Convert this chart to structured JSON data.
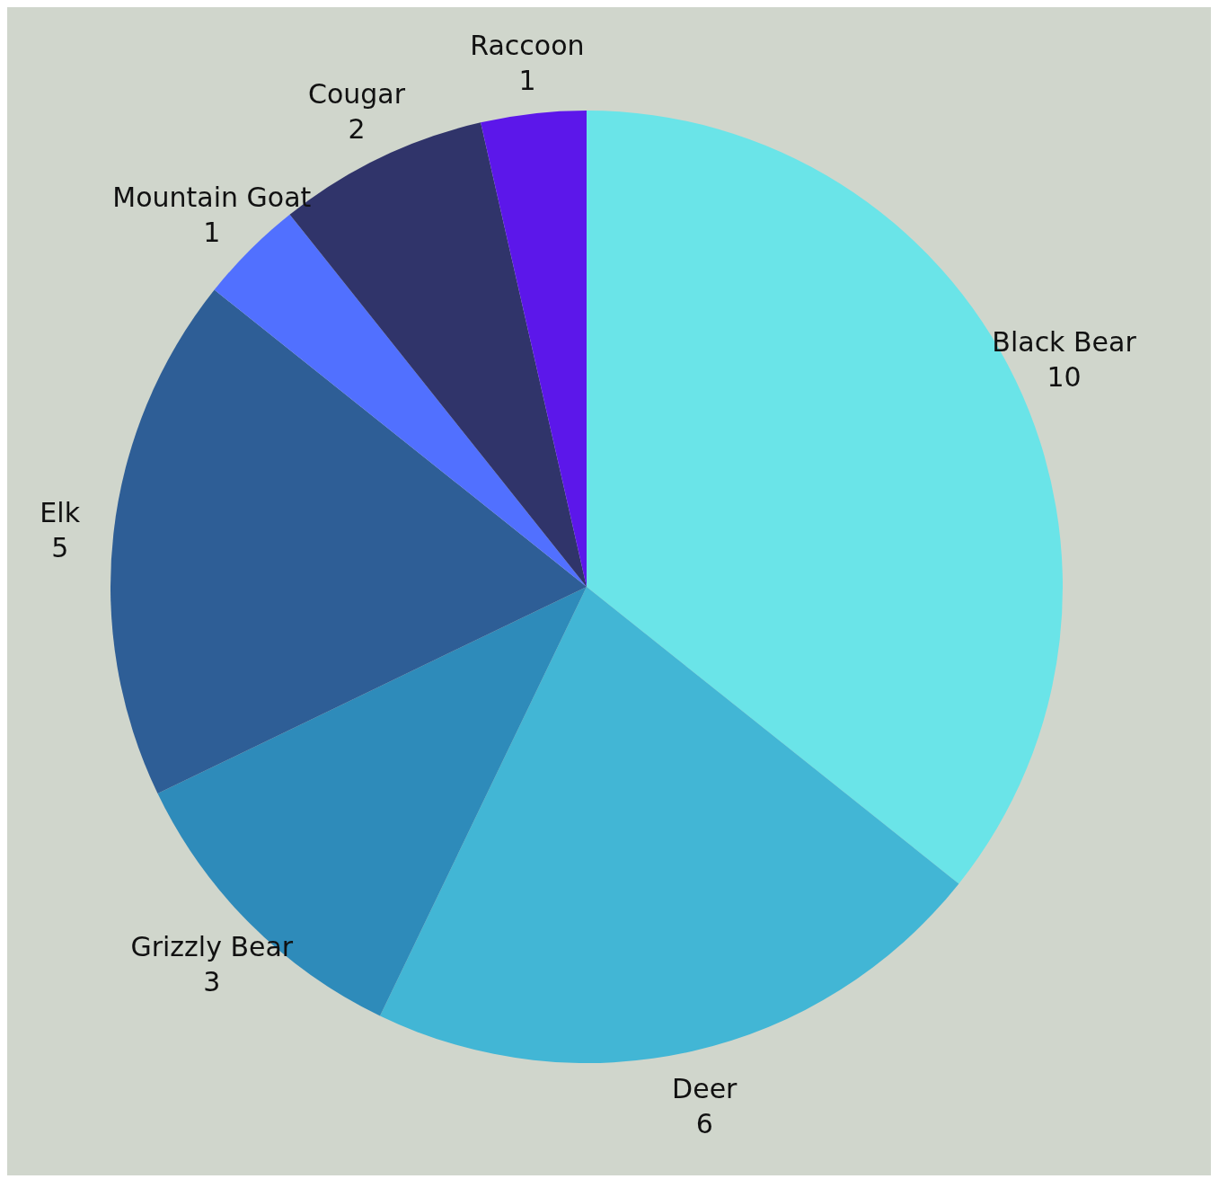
{
  "chart_data": {
    "type": "pie",
    "categories": [
      "Black Bear",
      "Deer",
      "Grizzly Bear",
      "Elk",
      "Mountain Goat",
      "Cougar",
      "Raccoon"
    ],
    "values": [
      10,
      6,
      3,
      5,
      1,
      2,
      1
    ],
    "colors": [
      "#6ae4e8",
      "#42b6d5",
      "#2e8bba",
      "#2e5e96",
      "#5170ff",
      "#30346a",
      "#5c17ea"
    ],
    "data_labels": true,
    "legend": false
  }
}
